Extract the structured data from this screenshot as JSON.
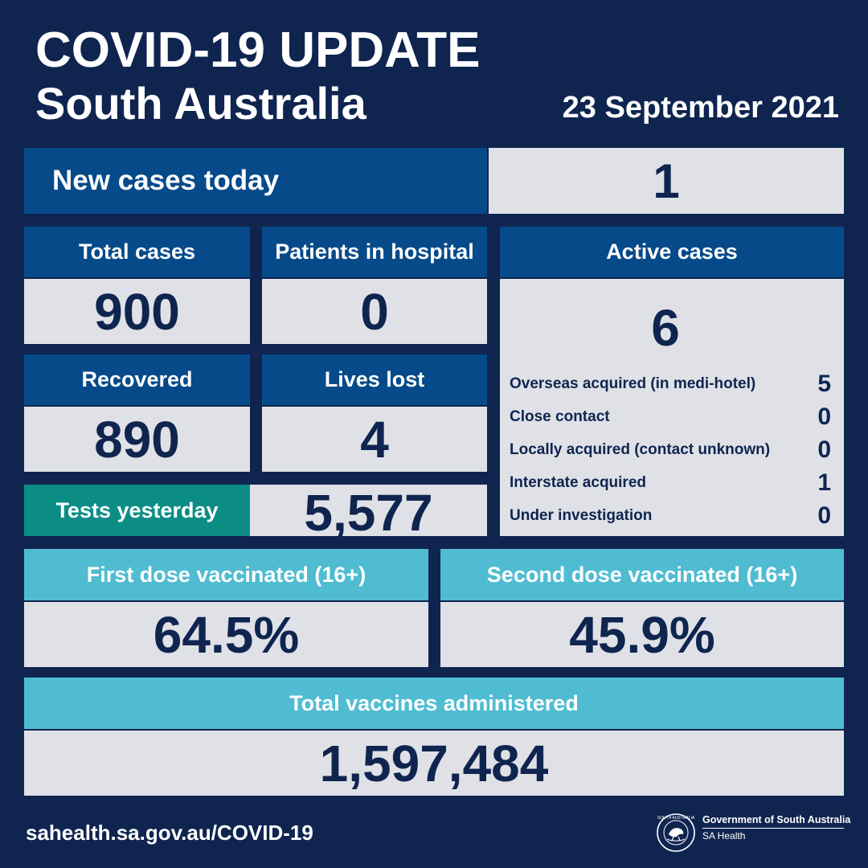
{
  "header": {
    "title_line1": "COVID-19 UPDATE",
    "title_line2": "South Australia",
    "date": "23 September 2021"
  },
  "new_cases": {
    "label": "New cases today",
    "value": "1"
  },
  "total_cases": {
    "label": "Total cases",
    "value": "900"
  },
  "patients_in_hospital": {
    "label": "Patients in hospital",
    "value": "0"
  },
  "recovered": {
    "label": "Recovered",
    "value": "890"
  },
  "lives_lost": {
    "label": "Lives lost",
    "value": "4"
  },
  "tests_yesterday": {
    "label": "Tests yesterday",
    "value": "5,577"
  },
  "active_cases": {
    "label": "Active cases",
    "value": "6",
    "breakdown": [
      {
        "label": "Overseas acquired (in medi-hotel)",
        "value": "5"
      },
      {
        "label": "Close contact",
        "value": "0"
      },
      {
        "label": "Locally acquired (contact unknown)",
        "value": "0"
      },
      {
        "label": "Interstate acquired",
        "value": "1"
      },
      {
        "label": "Under investigation",
        "value": "0"
      }
    ]
  },
  "first_dose": {
    "label": "First dose vaccinated (16+)",
    "value": "64.5%"
  },
  "second_dose": {
    "label": "Second dose vaccinated (16+)",
    "value": "45.9%"
  },
  "total_vaccines": {
    "label": "Total vaccines administered",
    "value": "1,597,484"
  },
  "footer": {
    "url": "sahealth.sa.gov.au/COVID-19",
    "gov_name": "Government of South Australia",
    "gov_sub": "SA Health",
    "seal_text": "SOUTH AUSTRALIA"
  },
  "icons": {
    "seal": "piping-shrike-seal-icon"
  },
  "colors": {
    "background": "#0f2550",
    "header_blue": "#064a89",
    "value_grey": "#dfe1e6",
    "tests_teal": "#0b8d86",
    "vaccine_cyan": "#4fbcd1"
  }
}
